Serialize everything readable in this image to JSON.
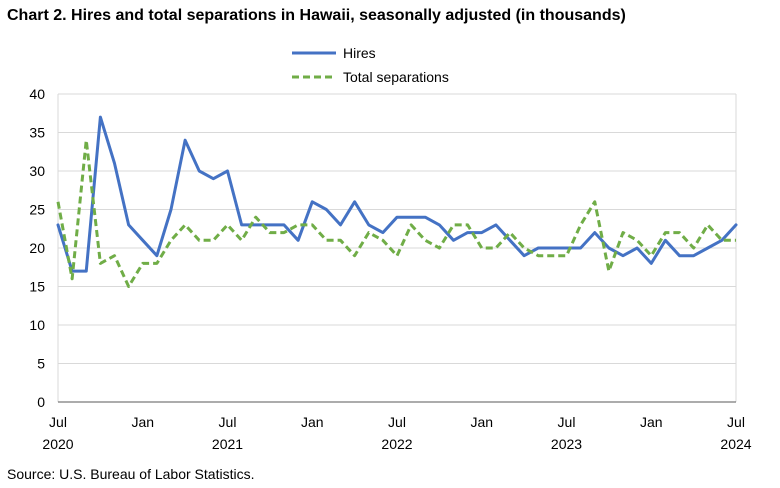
{
  "title": "Chart 2. Hires and total separations in Hawaii, seasonally adjusted (in thousands)",
  "source": "Source: U.S. Bureau of Labor Statistics.",
  "chart_data": {
    "type": "line",
    "title": "Chart 2. Hires and total separations in Hawaii, seasonally adjusted (in thousands)",
    "xlabel": "",
    "ylabel": "",
    "ylim": [
      0,
      40
    ],
    "yticks": [
      0,
      5,
      10,
      15,
      20,
      25,
      30,
      35,
      40
    ],
    "grid": "horizontal",
    "legend_position": "top-center",
    "x_start": "2020-07",
    "x_end": "2024-07",
    "x": [
      "2020-07",
      "2020-08",
      "2020-09",
      "2020-10",
      "2020-11",
      "2020-12",
      "2021-01",
      "2021-02",
      "2021-03",
      "2021-04",
      "2021-05",
      "2021-06",
      "2021-07",
      "2021-08",
      "2021-09",
      "2021-10",
      "2021-11",
      "2021-12",
      "2022-01",
      "2022-02",
      "2022-03",
      "2022-04",
      "2022-05",
      "2022-06",
      "2022-07",
      "2022-08",
      "2022-09",
      "2022-10",
      "2022-11",
      "2022-12",
      "2023-01",
      "2023-02",
      "2023-03",
      "2023-04",
      "2023-05",
      "2023-06",
      "2023-07",
      "2023-08",
      "2023-09",
      "2023-10",
      "2023-11",
      "2023-12",
      "2024-01",
      "2024-02",
      "2024-03",
      "2024-04",
      "2024-05",
      "2024-06",
      "2024-07"
    ],
    "x_tick_labels": [
      {
        "month": "Jul",
        "year": "2020"
      },
      {
        "month": "Jan",
        "year": ""
      },
      {
        "month": "Jul",
        "year": "2021"
      },
      {
        "month": "Jan",
        "year": ""
      },
      {
        "month": "Jul",
        "year": "2022"
      },
      {
        "month": "Jan",
        "year": ""
      },
      {
        "month": "Jul",
        "year": "2023"
      },
      {
        "month": "Jan",
        "year": ""
      },
      {
        "month": "Jul",
        "year": "2024"
      }
    ],
    "series": [
      {
        "name": "Hires",
        "color": "#4472C4",
        "style": "solid",
        "values": [
          23,
          17,
          17,
          37,
          31,
          23,
          21,
          19,
          25,
          34,
          30,
          29,
          30,
          23,
          23,
          23,
          23,
          21,
          26,
          25,
          23,
          26,
          23,
          22,
          24,
          24,
          24,
          23,
          21,
          22,
          22,
          23,
          21,
          19,
          20,
          20,
          20,
          20,
          22,
          20,
          19,
          20,
          18,
          21,
          19,
          19,
          20,
          21,
          23
        ]
      },
      {
        "name": "Total separations",
        "color": "#70AD47",
        "style": "dashed",
        "values": [
          26,
          16,
          34,
          18,
          19,
          15,
          18,
          18,
          21,
          23,
          21,
          21,
          23,
          21,
          24,
          22,
          22,
          23,
          23,
          21,
          21,
          19,
          22,
          21,
          19,
          23,
          21,
          20,
          23,
          23,
          20,
          20,
          22,
          20,
          19,
          19,
          19,
          23,
          26,
          17,
          22,
          21,
          19,
          22,
          22,
          20,
          23,
          21,
          21
        ]
      }
    ]
  }
}
